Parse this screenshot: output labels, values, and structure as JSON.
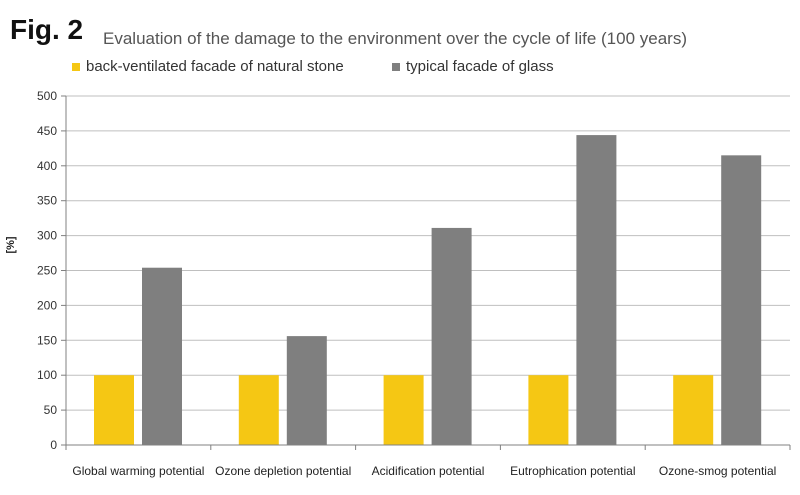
{
  "figure_label": "Fig. 2",
  "chart_data": {
    "type": "bar",
    "title": "Evaluation of the damage to the environment over the cycle of life (100 years)",
    "xlabel": "",
    "ylabel": "[%]",
    "ylim": [
      0,
      500
    ],
    "yticks": [
      0,
      50,
      100,
      150,
      200,
      250,
      300,
      350,
      400,
      450,
      500
    ],
    "grid": true,
    "legend_position": "top",
    "categories": [
      "Global warming potential",
      "Ozone depletion potential",
      "Acidification potential",
      "Eutrophication potential",
      "Ozone-smog potential"
    ],
    "series": [
      {
        "name": "back-ventilated facade of natural stone",
        "color": "#F5C714",
        "values": [
          100,
          100,
          100,
          100,
          100
        ]
      },
      {
        "name": "typical facade of glass",
        "color": "#7F7F7F",
        "values": [
          254,
          156,
          311,
          444,
          415
        ]
      }
    ]
  }
}
